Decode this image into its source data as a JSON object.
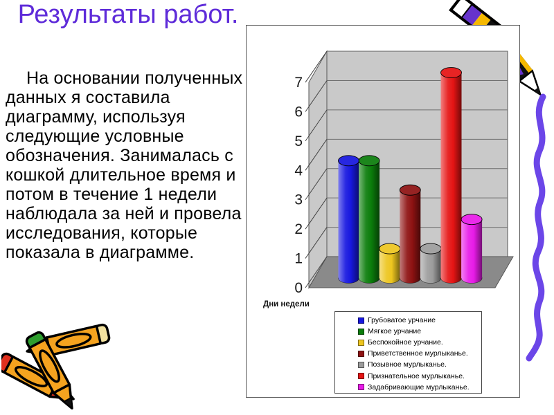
{
  "slide": {
    "title": "Результаты работ.",
    "title_color": "#5E2BD9",
    "paragraph": "На основании полученных данных я составила диаграмму, используя следующие условные обозначения. Занималась с кошкой длительное время и потом в течение 1 недели наблюдала за ней и провела исследования, которые показала  в диаграмме."
  },
  "chart_data": {
    "type": "bar",
    "subtype": "3d-cylinder",
    "title": "",
    "xlabel": "Дни недели",
    "ylabel": "",
    "ylim": [
      0,
      7
    ],
    "yticks": [
      0,
      1,
      2,
      3,
      4,
      5,
      6,
      7
    ],
    "grid": true,
    "legend_position": "bottom-right-box",
    "wall_color": "#C9C9C9",
    "floor_color": "#8A8A8A",
    "series": [
      {
        "name": "Грубоватое урчание",
        "value": 4,
        "color": "#1717DF"
      },
      {
        "name": "Мягкое урчание",
        "value": 4,
        "color": "#0B7D0B"
      },
      {
        "name": "Беспокойное урчание.",
        "value": 1,
        "color": "#EDC51F"
      },
      {
        "name": "Приветственное мурлыканье.",
        "value": 3,
        "color": "#8E1212"
      },
      {
        "name": "Позывное мурлыканье.",
        "value": 1,
        "color": "#9C9C9C"
      },
      {
        "name": "Признательное мурлыканье.",
        "value": 7,
        "color": "#E51414"
      },
      {
        "name": "Задабривающие мурлыканье.",
        "value": 2,
        "color": "#E81BE8"
      }
    ]
  },
  "decorations": {
    "top_right": "pencil-icon",
    "right_edge": "pencil-tip-with-scribble-icon",
    "bottom_left": "crossed-pencils-icon",
    "scribble_color": "#6B46E8",
    "pencil_purple": "#6633CC",
    "pencil_yellow": "#F5B800",
    "pencil_orange": "#F5A31F"
  }
}
